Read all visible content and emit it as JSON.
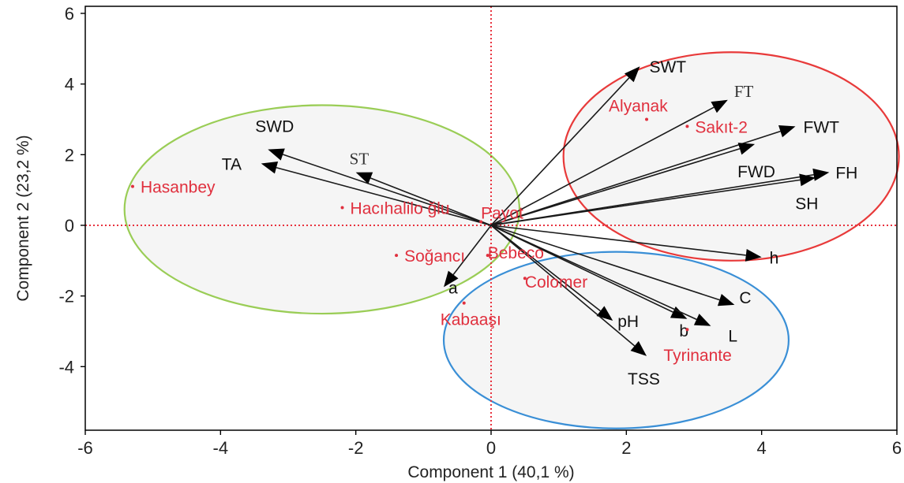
{
  "chart_data": {
    "type": "scatter",
    "title": "",
    "xlabel": "Component 1  (40,1 %)",
    "ylabel": "Component 2  (23,2 %)",
    "xlim": [
      -6,
      6
    ],
    "ylim": [
      -5.8,
      6.2
    ],
    "xticks": [
      "-6",
      "-4",
      "-2",
      "0",
      "2",
      "4",
      "6"
    ],
    "yticks": [
      "6",
      "4",
      "2",
      "0",
      "-2",
      "-4"
    ],
    "reference_lines": {
      "x": 0,
      "y": 0,
      "style": "dotted",
      "color": "#e8333f"
    },
    "colors": {
      "frame": "#000000",
      "arrow": "#1a1a1a",
      "observation": "#e0303e",
      "ellipse_green": "#9acd56",
      "ellipse_red": "#e83a3a",
      "ellipse_blue": "#3a8fd6",
      "ellipse_fill": "#f3f3f3"
    },
    "loadings": [
      {
        "name": "SWT",
        "x": 2.2,
        "y": 4.5
      },
      {
        "name": "FT",
        "x": 3.5,
        "y": 3.55
      },
      {
        "name": "FWT",
        "x": 4.5,
        "y": 2.8
      },
      {
        "name": "FWD",
        "x": 3.9,
        "y": 2.3
      },
      {
        "name": "FH",
        "x": 5.0,
        "y": 1.5
      },
      {
        "name": "SH",
        "x": 4.8,
        "y": 1.35
      },
      {
        "name": "SWD",
        "x": -3.3,
        "y": 2.15
      },
      {
        "name": "TA",
        "x": -3.4,
        "y": 1.75
      },
      {
        "name": "ST",
        "x": -2.0,
        "y": 1.5
      },
      {
        "name": "a",
        "x": -0.7,
        "y": -1.75
      },
      {
        "name": "h",
        "x": 4.0,
        "y": -0.9
      },
      {
        "name": "C",
        "x": 3.6,
        "y": -2.25
      },
      {
        "name": "b",
        "x": 2.9,
        "y": -2.65
      },
      {
        "name": "L",
        "x": 3.25,
        "y": -2.85
      },
      {
        "name": "pH",
        "x": 1.8,
        "y": -2.7
      },
      {
        "name": "TSS",
        "x": 2.3,
        "y": -3.7
      }
    ],
    "scores": [
      {
        "name": "Hasanbey",
        "x": -5.3,
        "y": 1.1
      },
      {
        "name": "Hacıhalilo ğlu",
        "x": -2.2,
        "y": 0.5
      },
      {
        "name": "Payot",
        "x": -0.15,
        "y": 0.1
      },
      {
        "name": "Soğancı",
        "x": -1.4,
        "y": -0.85
      },
      {
        "name": "Bebeco",
        "x": -0.05,
        "y": -0.85
      },
      {
        "name": "Colomer",
        "x": 0.5,
        "y": -1.5
      },
      {
        "name": "Kabaaşı",
        "x": -0.4,
        "y": -2.2
      },
      {
        "name": "Alyanak",
        "x": 2.3,
        "y": 3.0
      },
      {
        "name": "Sakıt-2",
        "x": 2.9,
        "y": 2.8
      },
      {
        "name": "Tyrinante",
        "x": 2.9,
        "y": -2.95
      }
    ],
    "ellipses": [
      {
        "color": "green",
        "cx": -2.5,
        "cy": 0.45,
        "rx": 2.92,
        "ry": 2.95
      },
      {
        "color": "red",
        "cx": 3.55,
        "cy": 1.95,
        "rx": 2.48,
        "ry": 2.95
      },
      {
        "color": "blue",
        "cx": 1.85,
        "cy": -3.25,
        "rx": 2.55,
        "ry": 2.5
      }
    ]
  }
}
